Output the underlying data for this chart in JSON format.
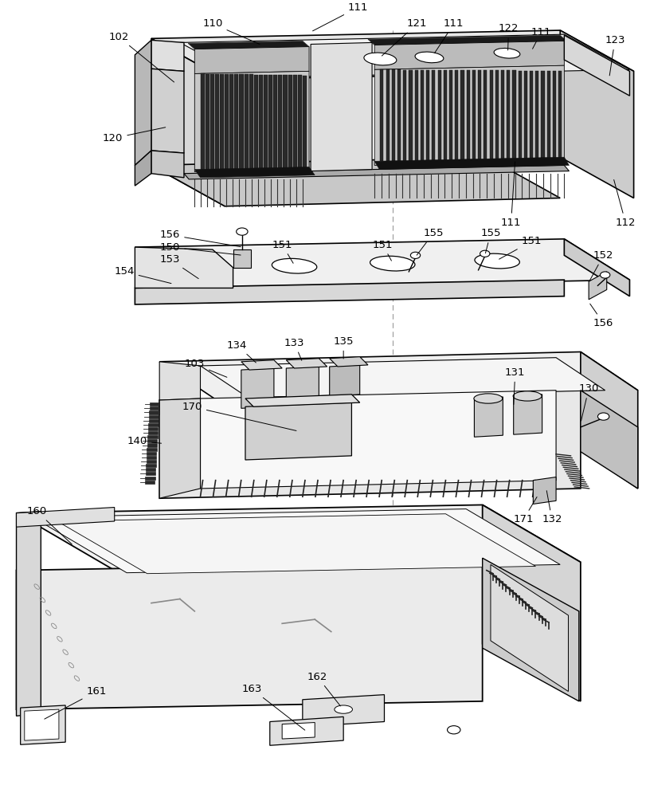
{
  "bg_color": "#ffffff",
  "line_color": "#000000",
  "gray_light": "#f0f0f0",
  "gray_mid": "#d8d8d8",
  "gray_dark": "#aaaaaa",
  "gray_darkest": "#444444",
  "black": "#111111"
}
